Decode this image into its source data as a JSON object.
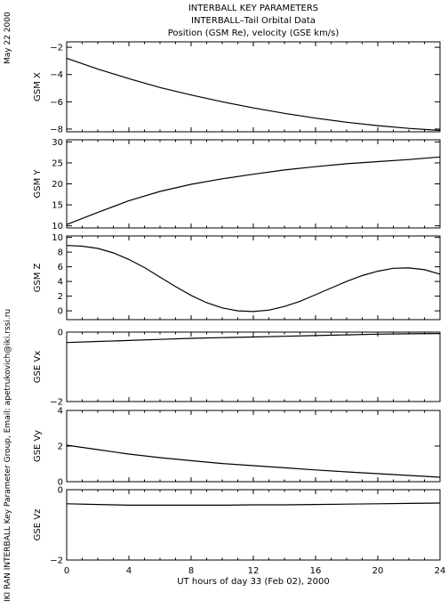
{
  "header": {
    "line1": "INTERBALL KEY PARAMETERS",
    "line2": "INTERBALL–Tail Orbital Data",
    "line3": "Position (GSM Re), velocity (GSE km/s)"
  },
  "side": {
    "date": "May 22 2000",
    "credit": "IKI RAN INTERBALL Key Parameter Group, Email: apetrukovich@iki.rssi.ru"
  },
  "x_axis": {
    "label": "UT hours of day  33 (Feb 02), 2000",
    "ticks": [
      "0",
      "4",
      "8",
      "12",
      "16",
      "20",
      "24"
    ],
    "range": [
      0,
      24
    ]
  },
  "chart_data": [
    {
      "type": "line",
      "ylabel": "GSM X",
      "ylim": [
        -8.2,
        -1.6
      ],
      "yticks": [
        -8,
        -6,
        -4,
        -2
      ],
      "ytick_labels": [
        "−8",
        "−6",
        "−4",
        "−2"
      ],
      "x": [
        0,
        2,
        4,
        6,
        8,
        10,
        12,
        14,
        16,
        18,
        20,
        22,
        24
      ],
      "y": [
        -2.8,
        -3.6,
        -4.3,
        -4.95,
        -5.5,
        -6.0,
        -6.45,
        -6.85,
        -7.2,
        -7.5,
        -7.75,
        -7.95,
        -8.1
      ]
    },
    {
      "type": "line",
      "ylabel": "GSM Y",
      "ylim": [
        9.5,
        30.5
      ],
      "yticks": [
        10,
        15,
        20,
        25,
        30
      ],
      "ytick_labels": [
        "10",
        "15",
        "20",
        "25",
        "30"
      ],
      "x": [
        0,
        2,
        4,
        6,
        8,
        10,
        12,
        14,
        16,
        18,
        20,
        22,
        24
      ],
      "y": [
        10.3,
        13.2,
        16.0,
        18.2,
        19.9,
        21.2,
        22.3,
        23.3,
        24.1,
        24.8,
        25.3,
        25.8,
        26.4
      ]
    },
    {
      "type": "line",
      "ylabel": "GSM Z",
      "ylim": [
        -1.2,
        10.2
      ],
      "yticks": [
        0,
        2,
        4,
        6,
        8,
        10
      ],
      "ytick_labels": [
        "0",
        "2",
        "4",
        "6",
        "8",
        "10"
      ],
      "x": [
        0,
        1,
        2,
        3,
        4,
        5,
        6,
        7,
        8,
        9,
        10,
        11,
        12,
        13,
        14,
        15,
        16,
        17,
        18,
        19,
        20,
        21,
        22,
        23,
        24
      ],
      "y": [
        8.9,
        8.8,
        8.5,
        7.9,
        7.0,
        5.9,
        4.6,
        3.3,
        2.1,
        1.1,
        0.4,
        0.0,
        -0.1,
        0.1,
        0.6,
        1.3,
        2.2,
        3.1,
        4.0,
        4.8,
        5.4,
        5.8,
        5.85,
        5.6,
        5.0
      ]
    },
    {
      "type": "line",
      "ylabel": "GSE Vx",
      "ylim": [
        -2,
        0
      ],
      "yticks": [
        -2,
        0
      ],
      "ytick_labels": [
        "−2",
        "0"
      ],
      "x": [
        0,
        2,
        4,
        6,
        8,
        10,
        12,
        14,
        16,
        18,
        20,
        22,
        24
      ],
      "y": [
        -0.3,
        -0.27,
        -0.24,
        -0.21,
        -0.18,
        -0.16,
        -0.14,
        -0.12,
        -0.1,
        -0.08,
        -0.06,
        -0.05,
        -0.04
      ]
    },
    {
      "type": "line",
      "ylabel": "GSE Vy",
      "ylim": [
        0,
        4
      ],
      "yticks": [
        0,
        2,
        4
      ],
      "ytick_labels": [
        "0",
        "2",
        "4"
      ],
      "x": [
        0,
        2,
        4,
        6,
        8,
        10,
        12,
        14,
        16,
        18,
        20,
        22,
        24
      ],
      "y": [
        2.05,
        1.8,
        1.55,
        1.35,
        1.18,
        1.02,
        0.9,
        0.78,
        0.66,
        0.55,
        0.45,
        0.35,
        0.25
      ]
    },
    {
      "type": "line",
      "ylabel": "GSE Vz",
      "ylim": [
        -2,
        0
      ],
      "yticks": [
        -2,
        0
      ],
      "ytick_labels": [
        "−2",
        "0"
      ],
      "x": [
        0,
        2,
        4,
        6,
        8,
        10,
        12,
        14,
        16,
        18,
        20,
        22,
        24
      ],
      "y": [
        -0.4,
        -0.42,
        -0.44,
        -0.44,
        -0.44,
        -0.44,
        -0.43,
        -0.43,
        -0.42,
        -0.41,
        -0.4,
        -0.39,
        -0.38
      ]
    }
  ]
}
